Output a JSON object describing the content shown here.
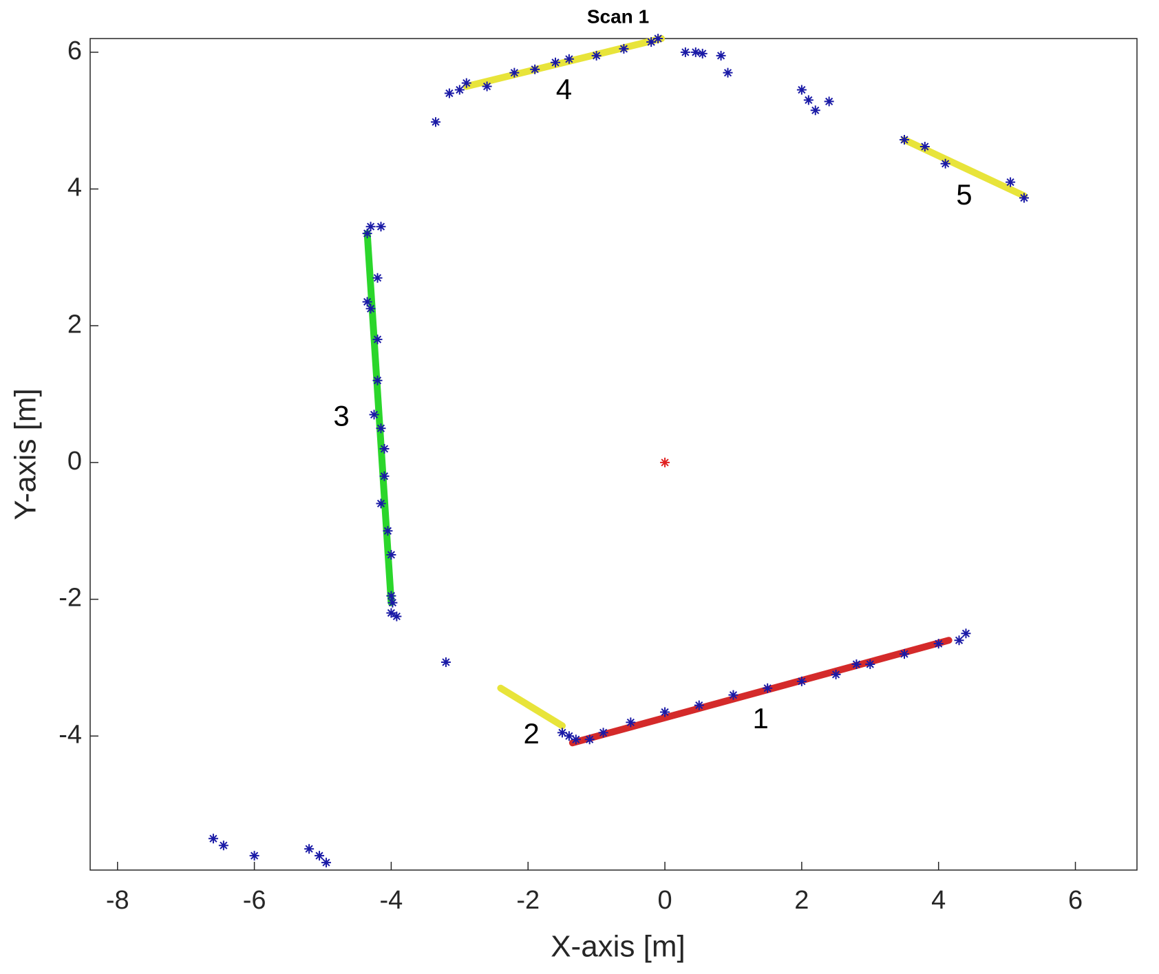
{
  "chart_data": {
    "type": "scatter",
    "title": "Scan 1",
    "xlabel": "X-axis [m]",
    "ylabel": "Y-axis [m]",
    "xlim": [
      -8.4,
      6.9
    ],
    "ylim": [
      -5.96,
      6.2
    ],
    "xticks": [
      -8,
      -6,
      -4,
      -2,
      0,
      2,
      4,
      6
    ],
    "yticks": [
      -4,
      -2,
      0,
      2,
      4,
      6
    ],
    "grid": false,
    "series": [
      {
        "color": "#1a1aa6",
        "marker": "asterisk",
        "x": [
          -3.35,
          -3.15,
          -3.0,
          -2.9,
          -2.6,
          -2.2,
          -1.9,
          -1.6,
          -1.4,
          -1.0,
          -0.6,
          -0.2,
          -0.1,
          0.3,
          0.45,
          0.55,
          0.82,
          0.92,
          2.0,
          2.1,
          2.2,
          2.4,
          3.5,
          3.8,
          4.1,
          5.05,
          5.25,
          -4.3,
          -4.15,
          -4.35,
          -4.2,
          -4.35,
          -4.3,
          -4.2,
          -4.2,
          -4.15,
          -4.25,
          -4.1,
          -4.1,
          -4.15,
          -4.05,
          -4.0,
          -4.0,
          -3.98,
          -4.0,
          -3.92,
          -3.2,
          -1.5,
          -1.4,
          -1.3,
          -1.1,
          -0.9,
          -0.5,
          0.0,
          0.5,
          1.0,
          1.5,
          2.0,
          2.5,
          2.8,
          3.0,
          3.5,
          4.0,
          4.3,
          4.4,
          -6.6,
          -6.45,
          -6.0,
          -5.2,
          -5.05,
          -4.95
        ],
        "y": [
          4.98,
          5.4,
          5.45,
          5.55,
          5.5,
          5.7,
          5.75,
          5.85,
          5.9,
          5.95,
          6.05,
          6.15,
          6.2,
          6.0,
          6.0,
          5.98,
          5.95,
          5.7,
          5.45,
          5.3,
          5.15,
          5.28,
          4.72,
          4.62,
          4.37,
          4.1,
          3.87,
          3.45,
          3.45,
          3.35,
          2.7,
          2.35,
          2.25,
          1.8,
          1.2,
          0.5,
          0.7,
          0.2,
          -0.2,
          -0.6,
          -1.0,
          -1.35,
          -1.95,
          -2.05,
          -2.2,
          -2.25,
          -2.92,
          -3.95,
          -4.0,
          -4.05,
          -4.05,
          -3.95,
          -3.8,
          -3.65,
          -3.55,
          -3.4,
          -3.3,
          -3.2,
          -3.1,
          -2.95,
          -2.95,
          -2.8,
          -2.65,
          -2.6,
          -2.5,
          -5.5,
          -5.6,
          -5.75,
          -5.65,
          -5.75,
          -5.85
        ]
      },
      {
        "color": "#e02020",
        "marker": "asterisk",
        "x": [
          0
        ],
        "y": [
          0
        ]
      }
    ],
    "segments": [
      {
        "label": "1",
        "color": "#d42a2a",
        "x": [
          -1.35,
          4.15
        ],
        "y": [
          -4.1,
          -2.6
        ]
      },
      {
        "label": "2",
        "color": "#e8e43a",
        "x": [
          -2.4,
          -1.5
        ],
        "y": [
          -3.3,
          -3.85
        ]
      },
      {
        "label": "3",
        "color": "#2bd62b",
        "x": [
          -4.35,
          -4.0
        ],
        "y": [
          3.35,
          -2.05
        ]
      },
      {
        "label": "4",
        "color": "#e8e43a",
        "x": [
          -2.9,
          -0.05
        ],
        "y": [
          5.5,
          6.2
        ]
      },
      {
        "label": "5",
        "color": "#e8e43a",
        "x": [
          3.5,
          5.25
        ],
        "y": [
          4.72,
          3.9
        ]
      }
    ]
  }
}
